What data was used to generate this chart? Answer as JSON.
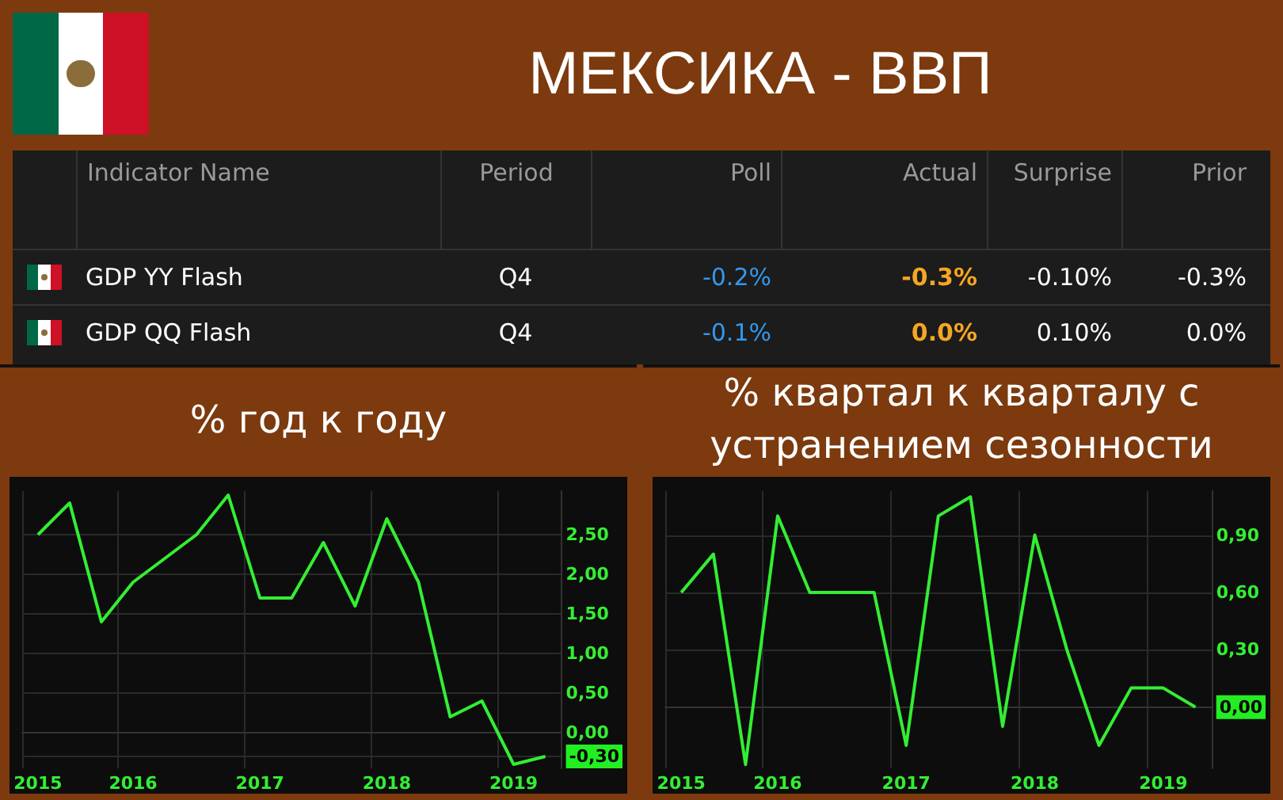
{
  "chart_data": [
    {
      "type": "other",
      "title": "МЕКСИКА - ВВП",
      "categories": [
        "Indicator Name",
        "Period",
        "Poll",
        "Actual",
        "Surprise",
        "Prior"
      ],
      "y_categories": [
        "GDP YY Flash",
        "GDP QQ Flash"
      ],
      "cell_labels": [
        [
          "Q4",
          "-0.2%",
          "-0.3%",
          "-0.10%",
          "-0.3%"
        ],
        [
          "Q4",
          "-0.1%",
          "0.0%",
          "0.10%",
          "0.0%"
        ]
      ]
    },
    {
      "type": "line",
      "title": "% год к году",
      "categories": [
        "2015",
        null,
        null,
        "2016",
        null,
        null,
        null,
        "2017",
        null,
        null,
        null,
        "2018",
        null,
        null,
        null,
        "2019",
        null
      ],
      "values": [
        2.5,
        2.9,
        1.4,
        1.9,
        2.2,
        2.5,
        3.0,
        1.7,
        1.7,
        2.4,
        1.6,
        2.7,
        1.9,
        0.2,
        0.4,
        -0.4,
        -0.3
      ],
      "color": "#33ee33",
      "ylim": [
        -0.45,
        3.05
      ],
      "yticks": [
        {
          "value": -0.3,
          "label": "-0,30"
        },
        {
          "value": 0,
          "label": "0,00"
        },
        {
          "value": 0.5,
          "label": "0,50"
        },
        {
          "value": 1,
          "label": "1,00"
        },
        {
          "value": 1.5,
          "label": "1,50"
        },
        {
          "value": 2,
          "label": "2,00"
        },
        {
          "value": 2.5,
          "label": "2,50"
        }
      ],
      "grid": true
    },
    {
      "type": "line",
      "title": "% квартал к кварталу с устранением сезонности",
      "categories": [
        "2015",
        null,
        null,
        "2016",
        null,
        null,
        null,
        "2017",
        null,
        null,
        null,
        "2018",
        null,
        null,
        null,
        "2019",
        null
      ],
      "values": [
        0.6,
        0.8,
        -0.3,
        1.0,
        0.6,
        0.6,
        0.6,
        -0.2,
        1.0,
        1.1,
        -0.1,
        0.9,
        0.3,
        -0.2,
        0.1,
        0.1,
        0.0
      ],
      "color": "#33ee33",
      "ylim": [
        -0.32,
        1.13
      ],
      "yticks": [
        {
          "value": 0,
          "label": "0,00"
        },
        {
          "value": 0.3,
          "label": "0,30"
        },
        {
          "value": 0.6,
          "label": "0,60"
        },
        {
          "value": 0.9,
          "label": "0,90"
        }
      ],
      "grid": true
    }
  ]
}
